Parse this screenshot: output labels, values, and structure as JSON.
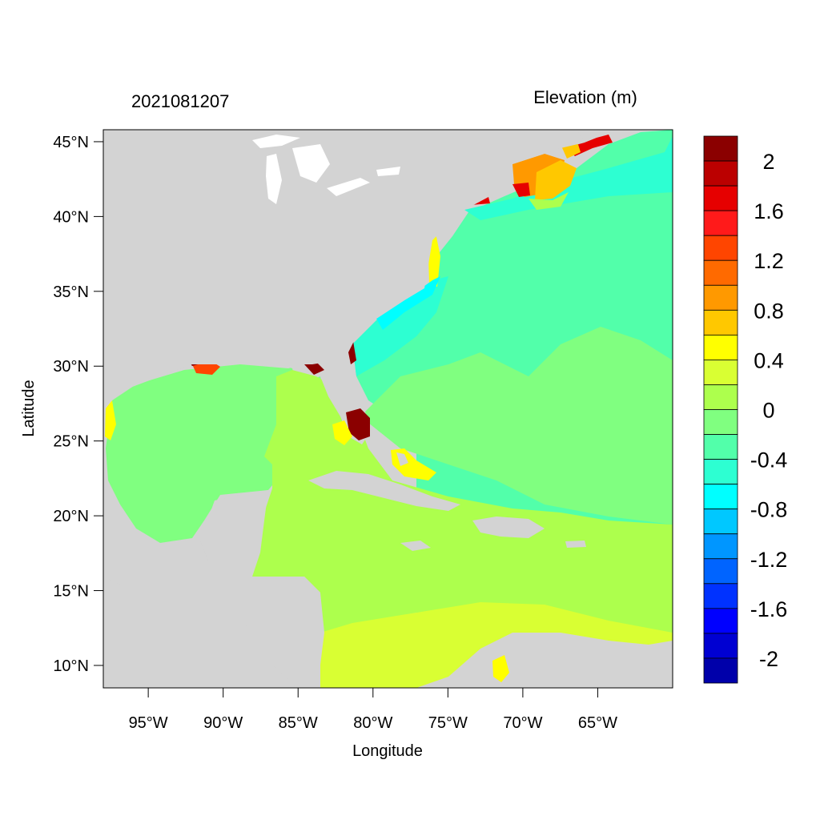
{
  "map": {
    "timestamp": "2021081207",
    "colorbar_title": "Elevation (m)",
    "xlabel": "Longitude",
    "ylabel": "Latitude",
    "x_ticks": [
      {
        "lon": -95,
        "label": "95°W"
      },
      {
        "lon": -90,
        "label": "90°W"
      },
      {
        "lon": -85,
        "label": "85°W"
      },
      {
        "lon": -80,
        "label": "80°W"
      },
      {
        "lon": -75,
        "label": "75°W"
      },
      {
        "lon": -70,
        "label": "70°W"
      },
      {
        "lon": -65,
        "label": "65°W"
      }
    ],
    "y_ticks": [
      {
        "lat": 45,
        "label": "45°N"
      },
      {
        "lat": 40,
        "label": "40°N"
      },
      {
        "lat": 35,
        "label": "35°N"
      },
      {
        "lat": 30,
        "label": "30°N"
      },
      {
        "lat": 25,
        "label": "25°N"
      },
      {
        "lat": 20,
        "label": "20°N"
      },
      {
        "lat": 15,
        "label": "15°N"
      },
      {
        "lat": 10,
        "label": "10°N"
      }
    ],
    "lon_range": [
      -98,
      -60
    ],
    "lat_range": [
      8.5,
      45.8
    ],
    "land_color": "#d3d3d3",
    "colorbar": {
      "colors": [
        "#8b0000",
        "#bb0000",
        "#e60000",
        "#ff1a1a",
        "#ff4500",
        "#ff6a00",
        "#ff9900",
        "#ffc800",
        "#ffff00",
        "#d9ff33",
        "#adff4d",
        "#80ff80",
        "#52ffaa",
        "#2dffd2",
        "#00ffff",
        "#00c8ff",
        "#0096ff",
        "#0064ff",
        "#0032ff",
        "#0000ff",
        "#0000d2",
        "#0000aa"
      ],
      "labels": [
        {
          "after_band": 1,
          "text": "2"
        },
        {
          "after_band": 3,
          "text": "1.6"
        },
        {
          "after_band": 5,
          "text": "1.2"
        },
        {
          "after_band": 7,
          "text": "0.8"
        },
        {
          "after_band": 9,
          "text": "0.4"
        },
        {
          "after_band": 11,
          "text": "0"
        },
        {
          "after_band": 13,
          "text": "-0.4"
        },
        {
          "after_band": 15,
          "text": "-0.8"
        },
        {
          "after_band": 17,
          "text": "-1.2"
        },
        {
          "after_band": 19,
          "text": "-1.6"
        },
        {
          "after_band": 21,
          "text": "-2"
        }
      ]
    }
  }
}
